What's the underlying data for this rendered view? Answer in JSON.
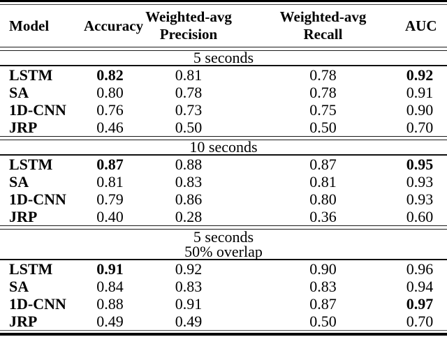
{
  "table": {
    "headers": {
      "model": "Model",
      "accuracy": "Accuracy",
      "precision_line1": "Weighted-avg",
      "precision_line2": "Precision",
      "recall_line1": "Weighted-avg",
      "recall_line2": "Recall",
      "auc": "AUC"
    },
    "sections": [
      {
        "title_lines": [
          "5 seconds"
        ],
        "rows": [
          {
            "model": "LSTM",
            "values": [
              "0.82",
              "0.81",
              "0.78",
              "0.92"
            ],
            "bold_values": [
              true,
              false,
              false,
              true
            ]
          },
          {
            "model": "SA",
            "values": [
              "0.80",
              "0.78",
              "0.78",
              "0.91"
            ],
            "bold_values": [
              false,
              false,
              false,
              false
            ]
          },
          {
            "model": "1D-CNN",
            "values": [
              "0.76",
              "0.73",
              "0.75",
              "0.90"
            ],
            "bold_values": [
              false,
              false,
              false,
              false
            ]
          },
          {
            "model": "JRP",
            "values": [
              "0.46",
              "0.50",
              "0.50",
              "0.70"
            ],
            "bold_values": [
              false,
              false,
              false,
              false
            ]
          }
        ]
      },
      {
        "title_lines": [
          "10 seconds"
        ],
        "rows": [
          {
            "model": "LSTM",
            "values": [
              "0.87",
              "0.88",
              "0.87",
              "0.95"
            ],
            "bold_values": [
              true,
              false,
              false,
              true
            ]
          },
          {
            "model": "SA",
            "values": [
              "0.81",
              "0.83",
              "0.81",
              "0.93"
            ],
            "bold_values": [
              false,
              false,
              false,
              false
            ]
          },
          {
            "model": "1D-CNN",
            "values": [
              "0.79",
              "0.86",
              "0.80",
              "0.93"
            ],
            "bold_values": [
              false,
              false,
              false,
              false
            ]
          },
          {
            "model": "JRP",
            "values": [
              "0.40",
              "0.28",
              "0.36",
              "0.60"
            ],
            "bold_values": [
              false,
              false,
              false,
              false
            ]
          }
        ]
      },
      {
        "title_lines": [
          "5 seconds",
          "50% overlap"
        ],
        "rows": [
          {
            "model": "LSTM",
            "values": [
              "0.91",
              "0.92",
              "0.90",
              "0.96"
            ],
            "bold_values": [
              true,
              false,
              false,
              false
            ]
          },
          {
            "model": "SA",
            "values": [
              "0.84",
              "0.83",
              "0.83",
              "0.94"
            ],
            "bold_values": [
              false,
              false,
              false,
              false
            ]
          },
          {
            "model": "1D-CNN",
            "values": [
              "0.88",
              "0.91",
              "0.87",
              "0.97"
            ],
            "bold_values": [
              false,
              false,
              false,
              true
            ]
          },
          {
            "model": "JRP",
            "values": [
              "0.49",
              "0.49",
              "0.50",
              "0.70"
            ],
            "bold_values": [
              false,
              false,
              false,
              false
            ]
          }
        ]
      }
    ],
    "colors": {
      "text": "#000000",
      "background": "#ffffff",
      "rule": "#000000"
    }
  }
}
